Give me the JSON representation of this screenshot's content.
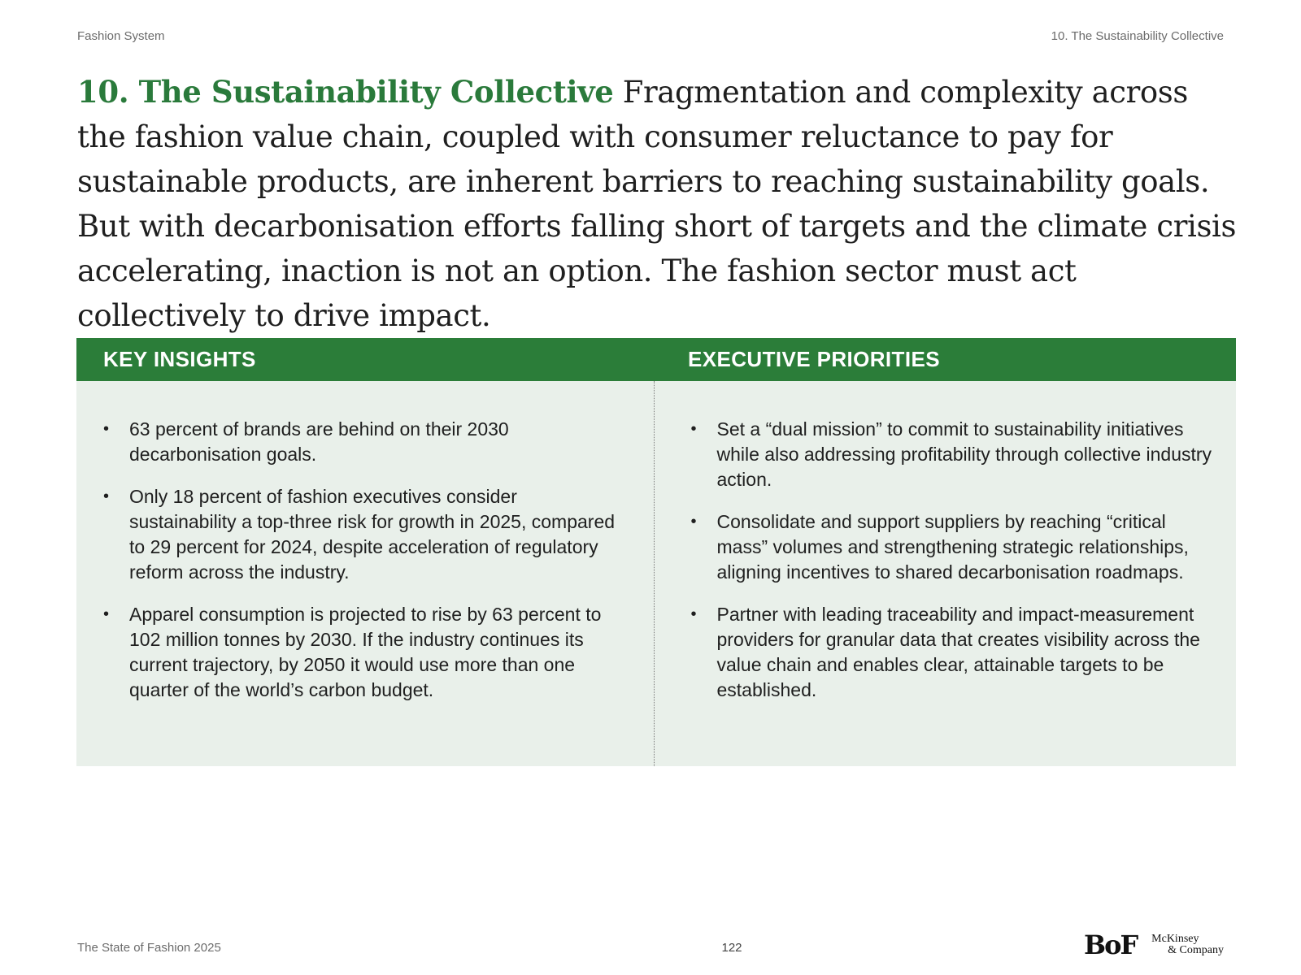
{
  "header": {
    "left": "Fashion System",
    "right": "10. The Sustainability Collective"
  },
  "lead": {
    "section_title": "10. The Sustainability Collective",
    "text": "Fragmentation and complexity across the fashion value chain, coupled with consumer reluctance to pay for sustainable products, are inherent barriers to reaching sustainability goals. But with decarbonisation efforts falling short of targets and the climate crisis accelerating, inaction is not an option. The fashion sector must act collectively to drive impact."
  },
  "panel": {
    "left_heading": "KEY INSIGHTS",
    "right_heading": "EXECUTIVE PRIORITIES",
    "key_insights": [
      "63 percent of brands are behind on their 2030 decarbonisation goals.",
      "Only 18 percent of fashion executives consider sustainability a top-three risk for growth in 2025, compared to 29 percent for 2024, despite acceleration of regulatory reform across the industry.",
      "Apparel consumption is projected to rise by 63 percent to 102 million tonnes by 2030. If the industry continues its current trajectory, by 2050 it would use more than one quarter of the world’s carbon budget."
    ],
    "executive_priorities": [
      "Set a “dual mission” to commit to sustainability initiatives while also addressing profitability through collective industry action.",
      "Consolidate and support suppliers by reaching “critical mass” volumes and strengthening strategic relationships, aligning incentives to shared decarbonisation roadmaps.",
      "Partner with leading traceability and impact-measurement providers for granular data that creates visibility across the value chain and enables clear, attainable targets to be established."
    ]
  },
  "footer": {
    "publication": "The State of Fashion 2025",
    "page_number": "122",
    "logo_bof": "BoF",
    "logo_mckinsey_line1": "McKinsey",
    "logo_mckinsey_line2": "& Company"
  },
  "colors": {
    "accent_green": "#2b7d39",
    "panel_background": "#e9f0ea"
  }
}
